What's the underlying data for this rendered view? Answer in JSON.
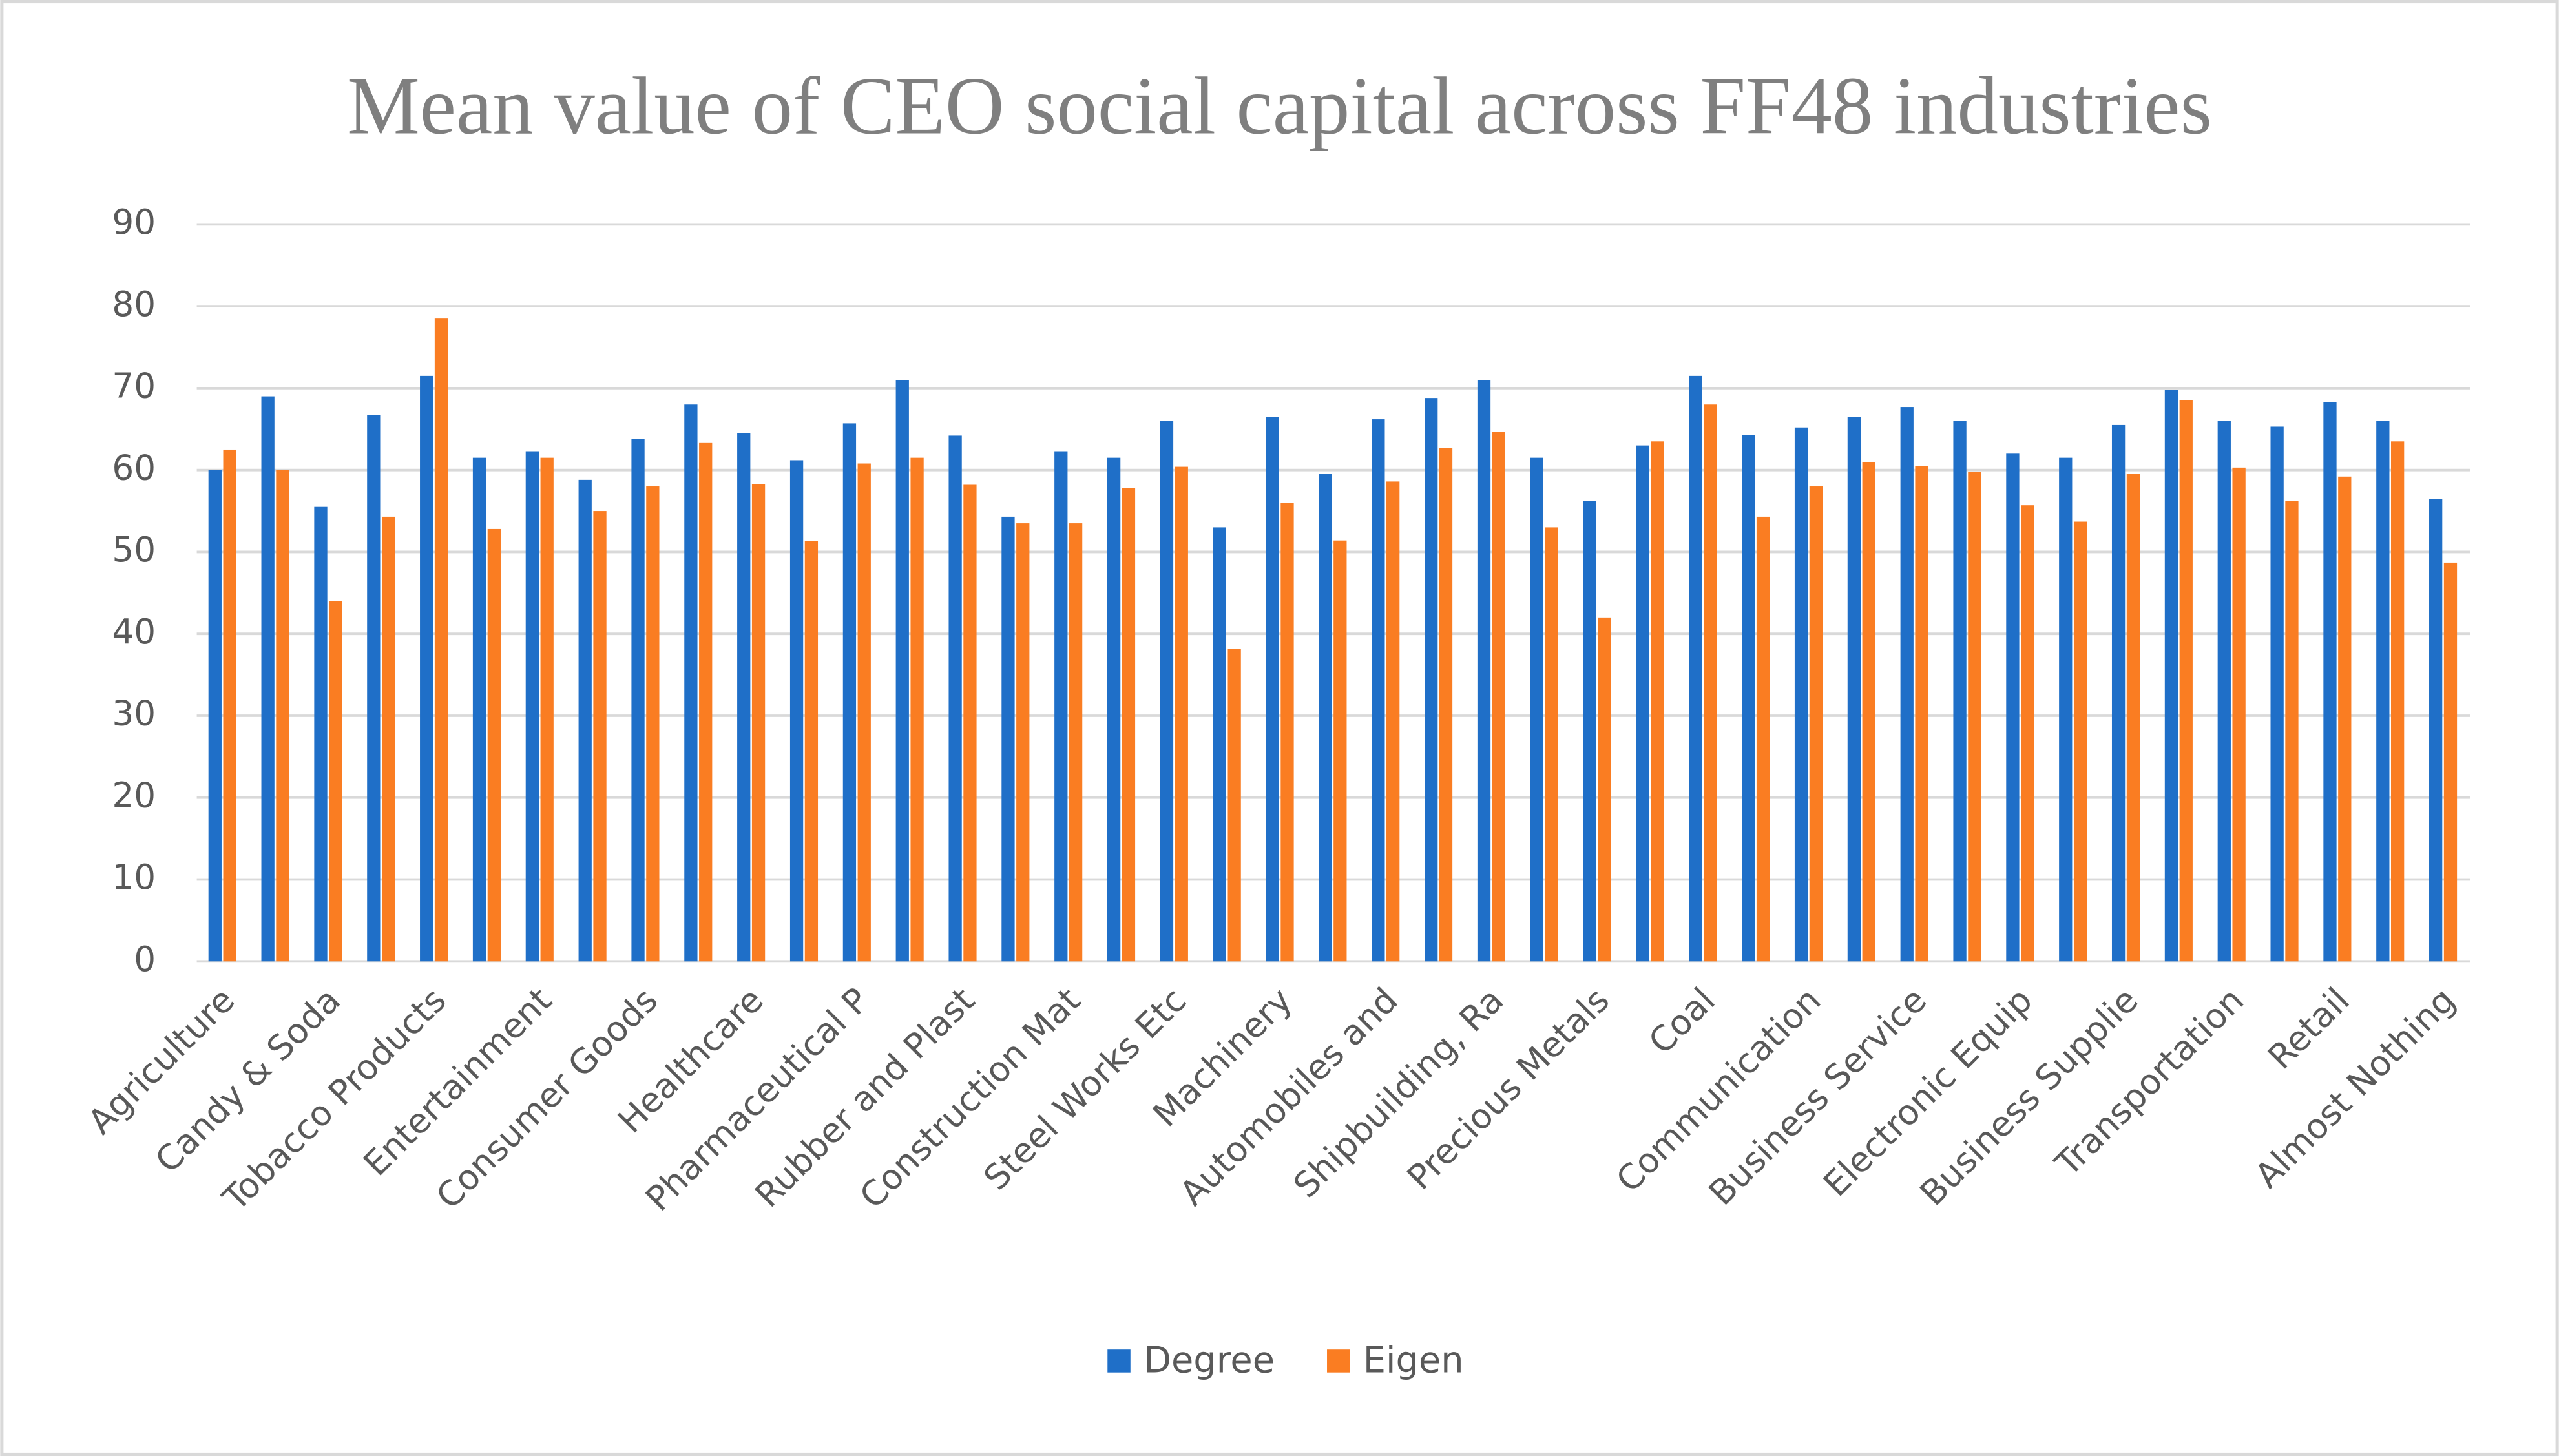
{
  "chart_data": {
    "type": "bar",
    "title": "Mean value of CEO social capital across FF48 industries",
    "categories": [
      "Agriculture",
      null,
      "Candy & Soda",
      null,
      "Tobacco Products",
      null,
      "Entertainment",
      null,
      "Consumer Goods",
      null,
      "Healthcare",
      null,
      "Pharmaceutical P",
      null,
      "Rubber and Plast",
      null,
      "Construction Mat",
      null,
      "Steel Works Etc",
      null,
      "Machinery",
      null,
      "Automobiles and",
      null,
      "Shipbuilding, Ra",
      null,
      "Precious Metals",
      null,
      "Coal",
      null,
      "Communication",
      null,
      "Business Service",
      null,
      "Electronic Equip",
      null,
      "Business Supplie",
      null,
      "Transportation",
      null,
      "Retail",
      null,
      "Almost Nothing"
    ],
    "series": [
      {
        "name": "Degree",
        "color": "#1f6fc8",
        "values": [
          60,
          69,
          55.5,
          66.7,
          71.5,
          61.5,
          62.3,
          58.8,
          63.8,
          68,
          64.5,
          61.2,
          65.7,
          71,
          64.2,
          54.3,
          62.3,
          61.5,
          66,
          53,
          66.5,
          59.5,
          66.2,
          68.8,
          71,
          61.5,
          56.2,
          63,
          71.5,
          64.3,
          65.2,
          66.5,
          67.7,
          66,
          62,
          61.5,
          65.5,
          69.8,
          66,
          65.3,
          68.3,
          66,
          56.5
        ]
      },
      {
        "name": "Eigen",
        "color": "#fa7d22",
        "values": [
          62.5,
          60,
          44,
          54.3,
          78.5,
          52.8,
          61.5,
          55,
          58,
          63.3,
          58.3,
          51.3,
          60.8,
          61.5,
          58.2,
          53.5,
          53.5,
          57.8,
          60.4,
          38.2,
          56,
          51.4,
          58.6,
          62.7,
          64.7,
          53,
          42,
          63.5,
          68,
          54.3,
          58,
          61,
          60.5,
          59.8,
          55.7,
          53.7,
          59.5,
          68.5,
          60.3,
          56.2,
          59.2,
          63.5,
          48.7
        ]
      }
    ],
    "ylim": [
      0,
      90
    ],
    "yticks": [
      0,
      10,
      20,
      30,
      40,
      50,
      60,
      70,
      80,
      90
    ],
    "grid": true,
    "legend": "bottom"
  }
}
